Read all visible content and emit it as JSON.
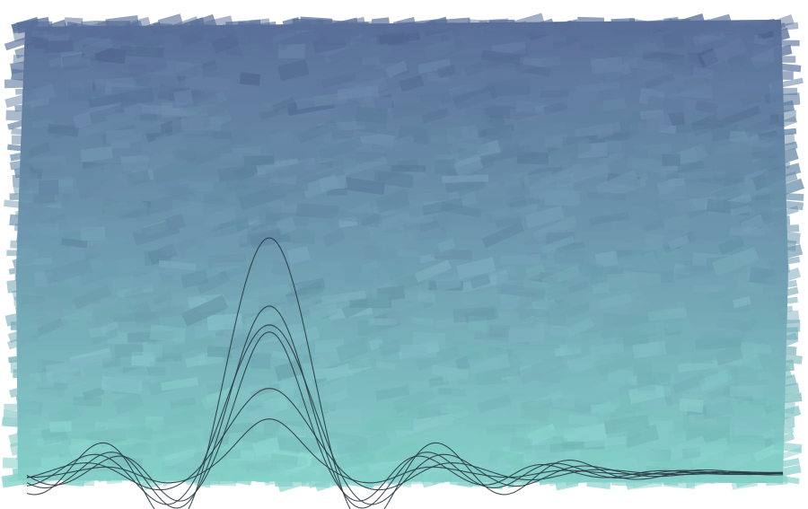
{
  "artwork": {
    "style": "painted-brushstroke-background-with-sinc-lines",
    "colors": {
      "background_top": "#5a6f98",
      "background_mid": "#6f9bb0",
      "background_bottom": "#86d2ca",
      "line_color": "#2c3b45",
      "page_background": "#ffffff"
    },
    "waves": [
      {
        "amplitude": 1.0,
        "phase": 0.0,
        "decay": 1.0
      },
      {
        "amplitude": 0.71,
        "phase": 0.35,
        "decay": 1.05
      },
      {
        "amplitude": 0.63,
        "phase": -0.3,
        "decay": 0.95
      },
      {
        "amplitude": 0.6,
        "phase": 0.55,
        "decay": 1.1
      },
      {
        "amplitude": 0.36,
        "phase": -0.55,
        "decay": 0.9
      },
      {
        "amplitude": 0.23,
        "phase": 0.8,
        "decay": 1.0
      }
    ]
  }
}
